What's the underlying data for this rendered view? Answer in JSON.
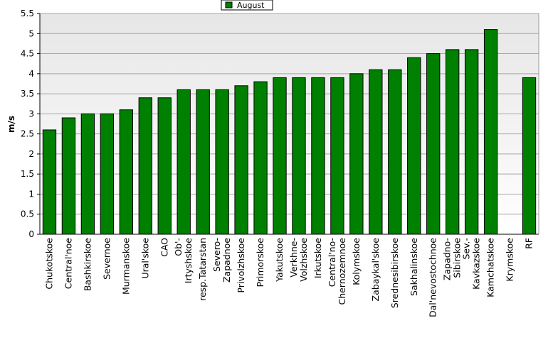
{
  "chart_data": {
    "type": "bar",
    "ylabel": "m/s",
    "ylim": [
      0,
      5.5
    ],
    "yticks": [
      0,
      0.5,
      1,
      1.5,
      2,
      2.5,
      3,
      3.5,
      4,
      4.5,
      5,
      5.5
    ],
    "ytick_labels": [
      "0",
      "0.5",
      "1",
      "1.5",
      "2",
      "2.5",
      "3",
      "3.5",
      "4",
      "4.5",
      "5",
      "5.5"
    ],
    "grid": true,
    "legend_position": "top-center",
    "categories": [
      "Chukotskoe",
      "Central'noe",
      "Bashkirskoe",
      "Severnoe",
      "Murmanskoe",
      "Ural'skoe",
      "CAO",
      "Ob'- Irtyshskoe",
      "resp.Tatarstan",
      "Severo- Zapadnoe",
      "Privolzhskoe",
      "Primorskoe",
      "Yakutskoe",
      "Verkhne- Volzhskoe",
      "Irkutskoe",
      "Central'no- Chernozemnoe",
      "Kolymskoe",
      "Zabaykal'skoe",
      "Srednesibirskoe",
      "Sakhalinskoe",
      "Dal'nevostochnoe",
      "Zapadno- Sibirskoe",
      "Sev.- Kavkazskoe",
      "Kamchatskoe",
      "Krymskoe",
      "RF"
    ],
    "category_lines": [
      [
        "Chukotskoe"
      ],
      [
        "Central'noe"
      ],
      [
        "Bashkirskoe"
      ],
      [
        "Severnoe"
      ],
      [
        "Murmanskoe"
      ],
      [
        "Ural'skoe"
      ],
      [
        "CAO"
      ],
      [
        "Ob'-",
        "Irtyshskoe"
      ],
      [
        "resp.Tatarstan"
      ],
      [
        "Severo-",
        "Zapadnoe"
      ],
      [
        "Privolzhskoe"
      ],
      [
        "Primorskoe"
      ],
      [
        "Yakutskoe"
      ],
      [
        "Verkhne-",
        "Volzhskoe"
      ],
      [
        "Irkutskoe"
      ],
      [
        "Central'no-",
        "Chernozemnoe"
      ],
      [
        "Kolymskoe"
      ],
      [
        "Zabaykal'skoe"
      ],
      [
        "Srednesibirskoe"
      ],
      [
        "Sakhalinskoe"
      ],
      [
        "Dal'nevostochnoe"
      ],
      [
        "Zapadno-",
        "Sibirskoe"
      ],
      [
        "Sev.-",
        "Kavkazskoe"
      ],
      [
        "Kamchatskoe"
      ],
      [
        "Krymskoe"
      ],
      [
        "RF"
      ]
    ],
    "series": [
      {
        "name": "August",
        "color": "#008000",
        "values": [
          2.6,
          2.9,
          3.0,
          3.0,
          3.1,
          3.4,
          3.4,
          3.6,
          3.6,
          3.6,
          3.7,
          3.8,
          3.9,
          3.9,
          3.9,
          3.9,
          4.0,
          4.1,
          4.1,
          4.4,
          4.5,
          4.6,
          4.6,
          5.1,
          null,
          3.9
        ]
      }
    ]
  }
}
